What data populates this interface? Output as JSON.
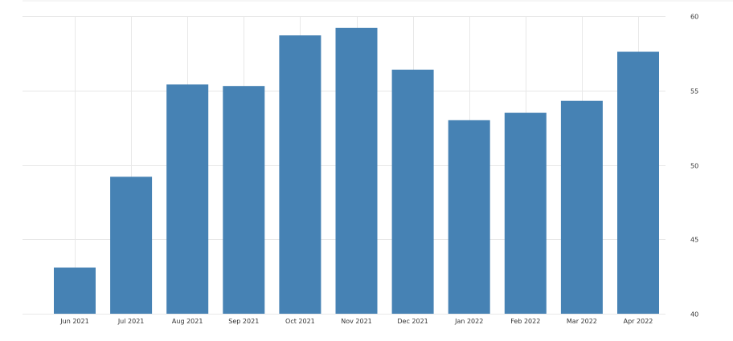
{
  "chart_data": {
    "type": "bar",
    "title": "",
    "xlabel": "",
    "ylabel": "",
    "categories": [
      "Jun 2021",
      "Jul 2021",
      "Aug 2021",
      "Sep 2021",
      "Oct 2021",
      "Nov 2021",
      "Dec 2021",
      "Jan 2022",
      "Feb 2022",
      "Mar 2022",
      "Apr 2022"
    ],
    "values": [
      43.1,
      49.2,
      55.4,
      55.3,
      58.7,
      59.2,
      56.4,
      53.0,
      53.5,
      54.3,
      57.6
    ],
    "ylim": [
      40,
      60
    ],
    "yticks": [
      "40",
      "45",
      "50",
      "55",
      "60"
    ],
    "y_axis_side": "right",
    "grid": true,
    "bar_color": "#4682b4",
    "grid_color": "#e8e8e8"
  }
}
